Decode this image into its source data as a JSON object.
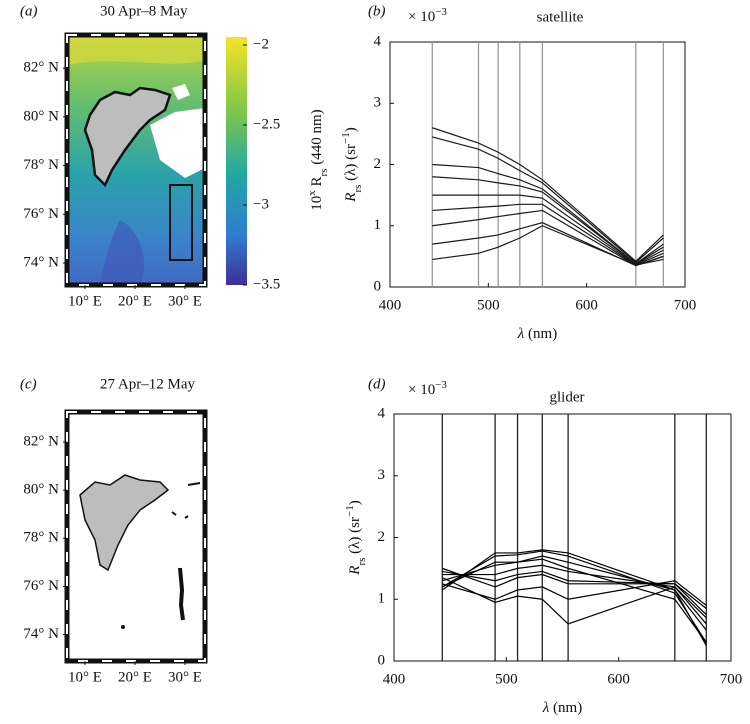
{
  "chart_data": [
    {
      "type": "map",
      "panel": "(a)",
      "title": "30 Apr–8 May",
      "xlim": [
        6.4,
        34
      ],
      "ylim": [
        73.1,
        83.36
      ],
      "xticks": [
        {
          "value": 10,
          "label": "10° E"
        },
        {
          "value": 20,
          "label": "20° E"
        },
        {
          "value": 30,
          "label": "30° E"
        }
      ],
      "yticks": [
        {
          "value": 82,
          "label": "82° N"
        },
        {
          "value": 80,
          "label": "80° N"
        },
        {
          "value": 78,
          "label": "78° N"
        },
        {
          "value": 76,
          "label": "76° N"
        },
        {
          "value": 74,
          "label": "74° N"
        }
      ],
      "colorbar": {
        "lim": [
          -3.5,
          -1.95
        ],
        "ticks": [
          {
            "value": -2,
            "label": "−2"
          },
          {
            "value": -2.5,
            "label": "−2.5"
          },
          {
            "value": -3,
            "label": "−3"
          },
          {
            "value": -3.5,
            "label": "−3.5"
          }
        ],
        "label": [
          {
            "text": "10"
          },
          {
            "text": "x",
            "baseline": "super"
          },
          {
            "text": " R"
          },
          {
            "text": "rs",
            "baseline": "sub"
          },
          {
            "text": " (440 nm)"
          }
        ]
      }
    },
    {
      "type": "line",
      "panel": "(b)",
      "title": "satellite",
      "multiplier": [
        {
          "text": "× 10"
        },
        {
          "text": "−3",
          "baseline": "super"
        }
      ],
      "xlabel": [
        {
          "text": "λ"
        },
        {
          "text": " (nm)"
        }
      ],
      "ylabel": [
        {
          "text": "R"
        },
        {
          "text": "rs",
          "baseline": "sub"
        },
        {
          "text": " (λ) (sr"
        },
        {
          "text": "−1",
          "baseline": "super"
        },
        {
          "text": ")"
        }
      ],
      "xlim": [
        400,
        700
      ],
      "ylim": [
        0,
        4
      ],
      "xticks": [
        400,
        500,
        600,
        700
      ],
      "yticks": [
        0,
        1,
        2,
        3,
        4
      ],
      "band_lines": true,
      "color": "#1a1a1a",
      "band_color": "#999999",
      "x": [
        443,
        490,
        510,
        532,
        555,
        650,
        678
      ],
      "series": [
        {
          "values": [
            2.6,
            2.35,
            2.2,
            2.0,
            1.75,
            0.42,
            0.85
          ]
        },
        {
          "values": [
            2.45,
            2.25,
            2.1,
            1.9,
            1.7,
            0.4,
            0.8
          ]
        },
        {
          "values": [
            2.0,
            1.95,
            1.85,
            1.75,
            1.6,
            0.38,
            0.7
          ]
        },
        {
          "values": [
            1.8,
            1.75,
            1.7,
            1.65,
            1.55,
            0.38,
            0.65
          ]
        },
        {
          "values": [
            1.5,
            1.5,
            1.5,
            1.5,
            1.45,
            0.37,
            0.6
          ]
        },
        {
          "values": [
            1.25,
            1.3,
            1.32,
            1.35,
            1.35,
            0.36,
            0.55
          ]
        },
        {
          "values": [
            1.0,
            1.1,
            1.15,
            1.2,
            1.25,
            0.35,
            0.5
          ]
        },
        {
          "values": [
            0.7,
            0.8,
            0.85,
            0.95,
            1.05,
            0.35,
            0.5
          ]
        },
        {
          "values": [
            0.45,
            0.55,
            0.65,
            0.8,
            1.0,
            0.36,
            0.45
          ]
        }
      ]
    },
    {
      "type": "map",
      "panel": "(c)",
      "title": "27 Apr–12 May",
      "xlim": [
        6.4,
        34
      ],
      "ylim": [
        72.9,
        83.25
      ],
      "xticks": [
        {
          "value": 10,
          "label": "10° E"
        },
        {
          "value": 20,
          "label": "20° E"
        },
        {
          "value": 30,
          "label": "30° E"
        }
      ],
      "yticks": [
        {
          "value": 82,
          "label": "82° N"
        },
        {
          "value": 80,
          "label": "80° N"
        },
        {
          "value": 78,
          "label": "78° N"
        },
        {
          "value": 76,
          "label": "76° N"
        },
        {
          "value": 74,
          "label": "74° N"
        }
      ]
    },
    {
      "type": "line",
      "panel": "(d)",
      "title": "glider",
      "multiplier": [
        {
          "text": "× 10"
        },
        {
          "text": "−3",
          "baseline": "super"
        }
      ],
      "xlabel": [
        {
          "text": "λ"
        },
        {
          "text": " (nm)"
        }
      ],
      "ylabel": [
        {
          "text": "R"
        },
        {
          "text": "rs",
          "baseline": "sub"
        },
        {
          "text": " (λ) (sr"
        },
        {
          "text": "−1",
          "baseline": "super"
        },
        {
          "text": ")"
        }
      ],
      "xlim": [
        400,
        700
      ],
      "ylim": [
        0,
        4
      ],
      "xticks": [
        400,
        500,
        600,
        700
      ],
      "yticks": [
        0,
        1,
        2,
        3,
        4
      ],
      "band_lines": true,
      "color": "#000000",
      "band_color": "#222222",
      "x": [
        443,
        490,
        510,
        532,
        555,
        650,
        678
      ],
      "series": [
        {
          "values": [
            1.15,
            1.75,
            1.75,
            1.8,
            1.75,
            1.15,
            0.25
          ]
        },
        {
          "values": [
            1.2,
            1.7,
            1.72,
            1.78,
            1.7,
            1.1,
            0.3
          ]
        },
        {
          "values": [
            1.3,
            1.55,
            1.6,
            1.7,
            1.6,
            1.15,
            0.5
          ]
        },
        {
          "values": [
            1.4,
            1.4,
            1.5,
            1.55,
            1.45,
            1.2,
            0.7
          ]
        },
        {
          "values": [
            1.5,
            1.2,
            1.35,
            1.4,
            1.25,
            1.25,
            0.85
          ]
        },
        {
          "values": [
            1.25,
            1.0,
            1.15,
            1.2,
            1.0,
            1.3,
            0.9
          ]
        },
        {
          "values": [
            1.35,
            0.95,
            1.05,
            1.0,
            0.6,
            1.2,
            0.6
          ]
        },
        {
          "values": [
            1.2,
            1.6,
            1.6,
            1.65,
            1.5,
            1.0,
            0.3
          ]
        },
        {
          "values": [
            1.45,
            1.3,
            1.4,
            1.45,
            1.3,
            1.25,
            0.75
          ]
        }
      ]
    }
  ]
}
